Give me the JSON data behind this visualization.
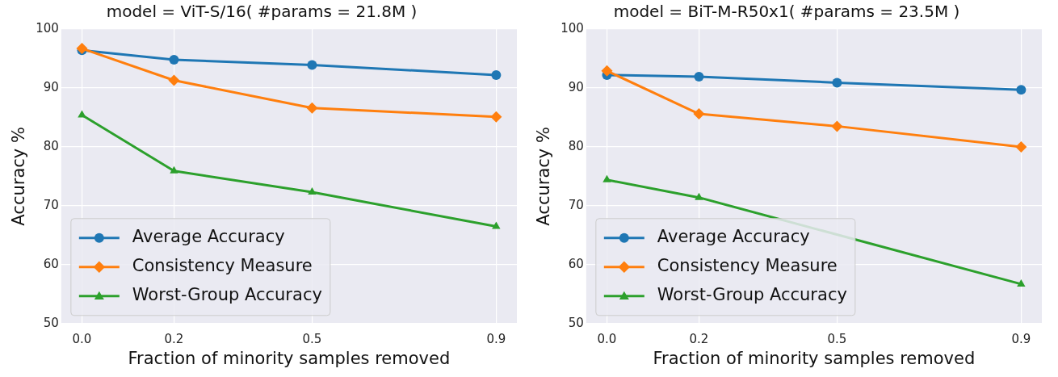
{
  "chart_data": [
    {
      "type": "line",
      "title": "model = ViT-S/16( #params = 21.8M )",
      "xlabel": "Fraction of minority samples removed",
      "ylabel": "Accuracy %",
      "x": [
        0,
        0.2,
        0.5,
        0.9
      ],
      "xlim": [
        -0.045,
        0.945
      ],
      "xticks": [
        {
          "value": 0,
          "label": "0.0"
        },
        0.2,
        0.5,
        0.9
      ],
      "ylim": [
        50,
        100
      ],
      "yticks": [
        50,
        60,
        70,
        80,
        90,
        100
      ],
      "grid": true,
      "legend": "bottom left",
      "series": [
        {
          "name": "Average Accuracy",
          "color": "#1f77b4",
          "marker": "circle",
          "values": [
            96.4,
            94.8,
            93.9,
            92.2
          ]
        },
        {
          "name": "Consistency Measure",
          "color": "#ff7f0e",
          "marker": "diamond",
          "values": [
            96.7,
            91.3,
            86.6,
            85.1
          ]
        },
        {
          "name": "Worst-Group Accuracy",
          "color": "#2ca02c",
          "marker": "triangle",
          "values": [
            85.4,
            75.9,
            72.3,
            66.5
          ]
        }
      ]
    },
    {
      "type": "line",
      "title": "model = BiT-M-R50x1( #params = 23.5M )",
      "xlabel": "Fraction of minority samples removed",
      "ylabel": "Accuracy %",
      "x": [
        0,
        0.2,
        0.5,
        0.9
      ],
      "xlim": [
        -0.045,
        0.945
      ],
      "xticks": [
        {
          "value": 0,
          "label": "0.0"
        },
        0.2,
        0.5,
        0.9
      ],
      "ylim": [
        50,
        100
      ],
      "yticks": [
        50,
        60,
        70,
        80,
        90,
        100
      ],
      "grid": true,
      "legend": "bottom left",
      "series": [
        {
          "name": "Average Accuracy",
          "color": "#1f77b4",
          "marker": "circle",
          "values": [
            92.2,
            91.9,
            90.9,
            89.7
          ]
        },
        {
          "name": "Consistency Measure",
          "color": "#ff7f0e",
          "marker": "diamond",
          "values": [
            92.9,
            85.6,
            83.5,
            80.0
          ]
        },
        {
          "name": "Worst-Group Accuracy",
          "color": "#2ca02c",
          "marker": "triangle",
          "values": [
            74.4,
            71.4,
            null,
            56.7
          ]
        }
      ]
    }
  ]
}
